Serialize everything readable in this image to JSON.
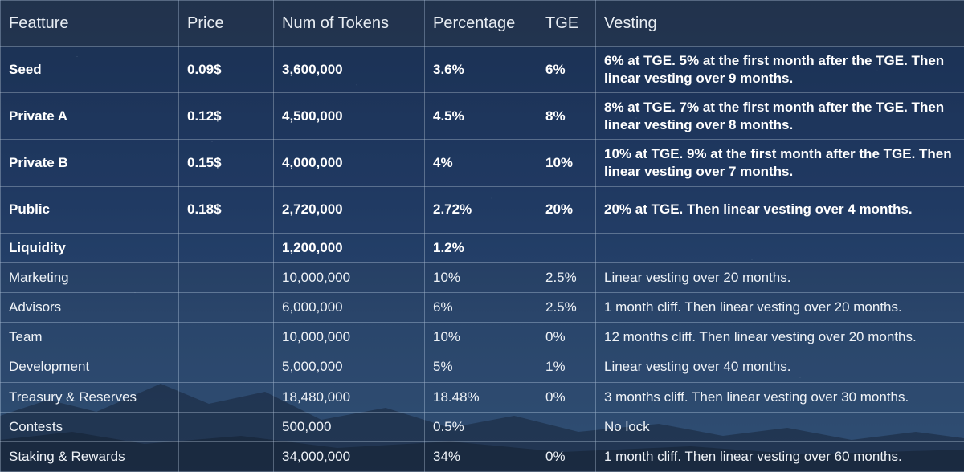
{
  "headers": [
    "Featture",
    "Price",
    "Num of Tokens",
    "Percentage",
    "TGE",
    "Vesting"
  ],
  "rows": [
    {
      "feature": "Seed",
      "price": "0.09$",
      "tokens": "3,600,000",
      "percentage": "3.6%",
      "tge": "6%",
      "vesting": "6% at TGE. 5% at the first month after the TGE. Then linear vesting over 9 months.",
      "bold": true
    },
    {
      "feature": "Private A",
      "price": "0.12$",
      "tokens": "4,500,000",
      "percentage": "4.5%",
      "tge": "8%",
      "vesting": "8% at TGE. 7% at the first month after the TGE. Then linear vesting over 8 months.",
      "bold": true
    },
    {
      "feature": "Private B",
      "price": "0.15$",
      "tokens": "4,000,000",
      "percentage": "4%",
      "tge": "10%",
      "vesting": "10% at TGE. 9% at the first month after the TGE. Then linear vesting over 7 months.",
      "bold": true
    },
    {
      "feature": "Public",
      "price": "0.18$",
      "tokens": "2,720,000",
      "percentage": "2.72%",
      "tge": "20%",
      "vesting": "20% at TGE. Then linear vesting over 4 months.",
      "bold": true
    },
    {
      "feature": "Liquidity",
      "price": "",
      "tokens": "1,200,000",
      "percentage": "1.2%",
      "tge": "",
      "vesting": "",
      "bold": true
    },
    {
      "feature": "Marketing",
      "price": "",
      "tokens": "10,000,000",
      "percentage": "10%",
      "tge": "2.5%",
      "vesting": "Linear vesting over 20 months.",
      "bold": false
    },
    {
      "feature": "Advisors",
      "price": "",
      "tokens": "6,000,000",
      "percentage": "6%",
      "tge": "2.5%",
      "vesting": "1 month cliff. Then linear vesting over 20 months.",
      "bold": false
    },
    {
      "feature": "Team",
      "price": "",
      "tokens": "10,000,000",
      "percentage": "10%",
      "tge": "0%",
      "vesting": "12 months cliff. Then linear vesting over 20 months.",
      "bold": false
    },
    {
      "feature": "Development",
      "price": "",
      "tokens": "5,000,000",
      "percentage": "5%",
      "tge": "1%",
      "vesting": "Linear vesting over 40 months.",
      "bold": false
    },
    {
      "feature": "Treasury & Reserves",
      "price": "",
      "tokens": "18,480,000",
      "percentage": "18.48%",
      "tge": "0%",
      "vesting": "3 months cliff. Then linear vesting over 30 months.",
      "bold": false
    },
    {
      "feature": "Contests",
      "price": "",
      "tokens": "500,000",
      "percentage": "0.5%",
      "tge": "",
      "vesting": "No lock",
      "bold": false
    },
    {
      "feature": "Staking & Rewards",
      "price": "",
      "tokens": "34,000,000",
      "percentage": "34%",
      "tge": "0%",
      "vesting": "1 month cliff. Then linear vesting over 60 months.",
      "bold": false
    }
  ]
}
